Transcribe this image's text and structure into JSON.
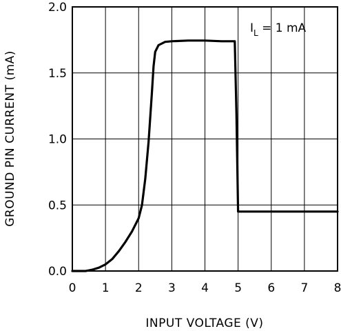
{
  "chart_data": {
    "type": "line",
    "title": "",
    "xlabel": "INPUT VOLTAGE (V)",
    "ylabel": "GROUND PIN CURRENT (mA)",
    "xlim": [
      0,
      8
    ],
    "ylim": [
      0.0,
      2.0
    ],
    "x_ticks": [
      "0",
      "1",
      "2",
      "3",
      "4",
      "5",
      "6",
      "7",
      "8"
    ],
    "y_ticks": [
      "0.0",
      "0.5",
      "1.0",
      "1.5",
      "2.0"
    ],
    "grid": true,
    "annotation": {
      "main": "I",
      "sub": "L",
      "rest": " = 1 mA"
    },
    "series": [
      {
        "x": [
          0,
          0.4,
          0.6,
          0.8,
          1.0,
          1.2,
          1.4,
          1.6,
          1.8,
          2.0,
          2.1,
          2.2,
          2.3,
          2.4,
          2.45,
          2.5,
          2.6,
          2.8,
          3.0,
          3.5,
          4.0,
          4.5,
          4.9,
          4.95,
          5.0,
          6.0,
          7.0,
          8.0
        ],
        "values": [
          0.0,
          0.0,
          0.01,
          0.025,
          0.05,
          0.09,
          0.15,
          0.22,
          0.3,
          0.4,
          0.5,
          0.7,
          0.98,
          1.35,
          1.55,
          1.66,
          1.71,
          1.735,
          1.74,
          1.745,
          1.745,
          1.74,
          1.74,
          1.2,
          0.45,
          0.45,
          0.45,
          0.45
        ]
      }
    ]
  }
}
